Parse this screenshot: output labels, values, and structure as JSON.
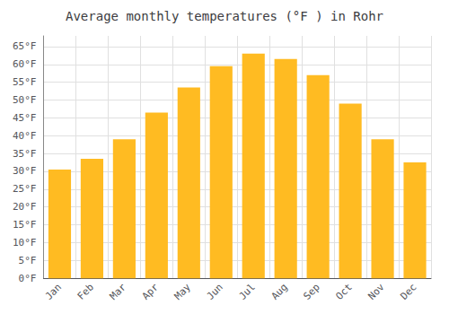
{
  "chart_data": {
    "type": "bar",
    "title": "Average monthly temperatures (°F ) in Rohr",
    "categories": [
      "Jan",
      "Feb",
      "Mar",
      "Apr",
      "May",
      "Jun",
      "Jul",
      "Aug",
      "Sep",
      "Oct",
      "Nov",
      "Dec"
    ],
    "values": [
      30.5,
      33.5,
      39.0,
      46.5,
      53.5,
      59.5,
      63.0,
      61.5,
      57.0,
      49.0,
      39.0,
      32.5
    ],
    "color": "#FFBB22",
    "ylim": [
      0,
      68
    ],
    "yticks": [
      {
        "value": 0,
        "label": "0°F"
      },
      {
        "value": 5,
        "label": "5°F"
      },
      {
        "value": 10,
        "label": "10°F"
      },
      {
        "value": 15,
        "label": "15°F"
      },
      {
        "value": 20,
        "label": "20°F"
      },
      {
        "value": 25,
        "label": "25°F"
      },
      {
        "value": 30,
        "label": "30°F"
      },
      {
        "value": 35,
        "label": "35°F"
      },
      {
        "value": 40,
        "label": "40°F"
      },
      {
        "value": 45,
        "label": "45°F"
      },
      {
        "value": 50,
        "label": "50°F"
      },
      {
        "value": 55,
        "label": "55°F"
      },
      {
        "value": 60,
        "label": "60°F"
      },
      {
        "value": 65,
        "label": "65°F"
      }
    ],
    "grid": true
  }
}
